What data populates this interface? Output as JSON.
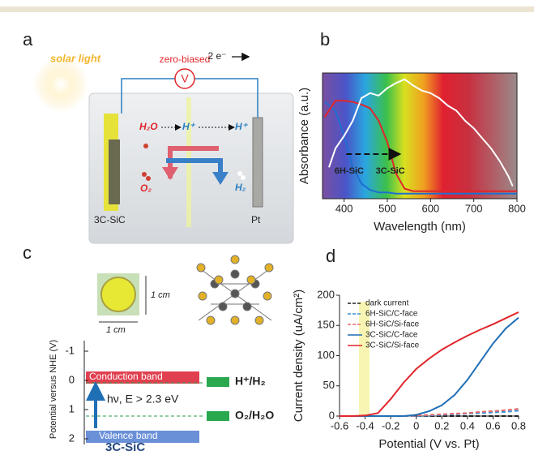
{
  "panel_a": {
    "label": "a",
    "solar_light": "solar light",
    "bias": "zero-biased",
    "meter": "V",
    "electrons": "2 e⁻",
    "water": "H₂O",
    "proton_left": "H⁺",
    "proton_right": "H⁺",
    "oxygen": "O₂",
    "hydrogen": "H₂",
    "photoanode": "3C-SiC",
    "cathode": "Pt"
  },
  "panel_c": {
    "label": "c",
    "y_label": "Potential versus NHE (V)",
    "yticks": [
      -1,
      0,
      1,
      2
    ],
    "size_v": "1 cm",
    "size_h": "1 cm",
    "conduction_band": "Conduction band",
    "valence_band": "Valence band",
    "reduction": "H⁺/H₂",
    "oxidation": "O₂/H₂O",
    "excitation": "hν, E > 2.3 eV",
    "material": "3C-SiC"
  },
  "chart_data": [
    {
      "type": "line",
      "label": "b",
      "x_label": "Wavelength (nm)",
      "y_label": "Absorbance (a.u.)",
      "xlim": [
        350,
        800
      ],
      "xticks": [
        400,
        500,
        600,
        700,
        800
      ],
      "ylim": [
        0,
        1
      ],
      "series": [
        {
          "name": "6H-SiC",
          "color": "#1f6fd1",
          "x": [
            355,
            380,
            400,
            420,
            440,
            460,
            480,
            500,
            520,
            540,
            560,
            600,
            700,
            800
          ],
          "values": [
            0.77,
            0.7,
            0.5,
            0.25,
            0.12,
            0.07,
            0.05,
            0.05,
            0.04,
            0.04,
            0.04,
            0.04,
            0.04,
            0.04
          ]
        },
        {
          "name": "3C-SiC",
          "color": "#e0262b",
          "x": [
            355,
            380,
            400,
            420,
            440,
            460,
            480,
            500,
            520,
            540,
            560,
            600,
            700,
            800
          ],
          "values": [
            0.65,
            0.78,
            0.78,
            0.77,
            0.75,
            0.72,
            0.62,
            0.45,
            0.2,
            0.08,
            0.06,
            0.06,
            0.06,
            0.06
          ]
        },
        {
          "color": "#ffffff",
          "x": [
            365,
            380,
            400,
            420,
            440,
            460,
            480,
            500,
            520,
            540,
            560,
            580,
            600,
            620,
            640,
            660,
            680,
            700,
            720,
            740,
            760,
            780,
            790
          ],
          "values": [
            0.25,
            0.4,
            0.5,
            0.62,
            0.8,
            0.84,
            0.82,
            0.88,
            0.92,
            0.95,
            0.9,
            0.86,
            0.84,
            0.8,
            0.74,
            0.7,
            0.62,
            0.56,
            0.48,
            0.4,
            0.3,
            0.18,
            0.1
          ]
        }
      ]
    },
    {
      "type": "line",
      "label": "d",
      "x_label": "Potential (V vs. Pt)",
      "y_label": "Current density (uA/cm²)",
      "xlim": [
        -0.6,
        0.8
      ],
      "xticks": [
        -0.6,
        -0.4,
        -0.2,
        0,
        0.2,
        0.4,
        0.6,
        0.8
      ],
      "ylim": [
        0,
        200
      ],
      "yticks": [
        0,
        50,
        100,
        150,
        200
      ],
      "legend": "upper left",
      "x": [
        -0.6,
        -0.5,
        -0.4,
        -0.3,
        -0.2,
        -0.1,
        0,
        0.1,
        0.2,
        0.3,
        0.4,
        0.5,
        0.6,
        0.7,
        0.8
      ],
      "series": [
        {
          "name": "dark current",
          "color": "#222222",
          "dashed": true,
          "values": [
            0,
            0,
            0,
            0,
            0,
            0,
            0,
            0,
            0,
            0,
            0,
            0,
            0,
            0,
            0
          ]
        },
        {
          "name": "6H-SiC/C-face",
          "color": "#3b8fd8",
          "dashed": true,
          "values": [
            0,
            0,
            0,
            0,
            0,
            0,
            0,
            1,
            2,
            3,
            4,
            5,
            6,
            7,
            9
          ]
        },
        {
          "name": "6H-SiC/Si-face",
          "color": "#e86a6a",
          "dashed": true,
          "values": [
            0,
            0,
            0,
            0,
            0,
            0,
            1,
            2,
            3,
            4,
            5,
            7,
            8,
            10,
            12
          ]
        },
        {
          "name": "3C-SiC/C-face",
          "color": "#1f6fb5",
          "dashed": false,
          "values": [
            0,
            0,
            0,
            0,
            0,
            0,
            2,
            8,
            18,
            35,
            60,
            90,
            120,
            145,
            163
          ]
        },
        {
          "name": "3C-SiC/Si-face",
          "color": "#e0262b",
          "dashed": false,
          "values": [
            0,
            0,
            1,
            5,
            28,
            55,
            78,
            95,
            110,
            122,
            133,
            143,
            152,
            162,
            172
          ]
        }
      ]
    }
  ]
}
